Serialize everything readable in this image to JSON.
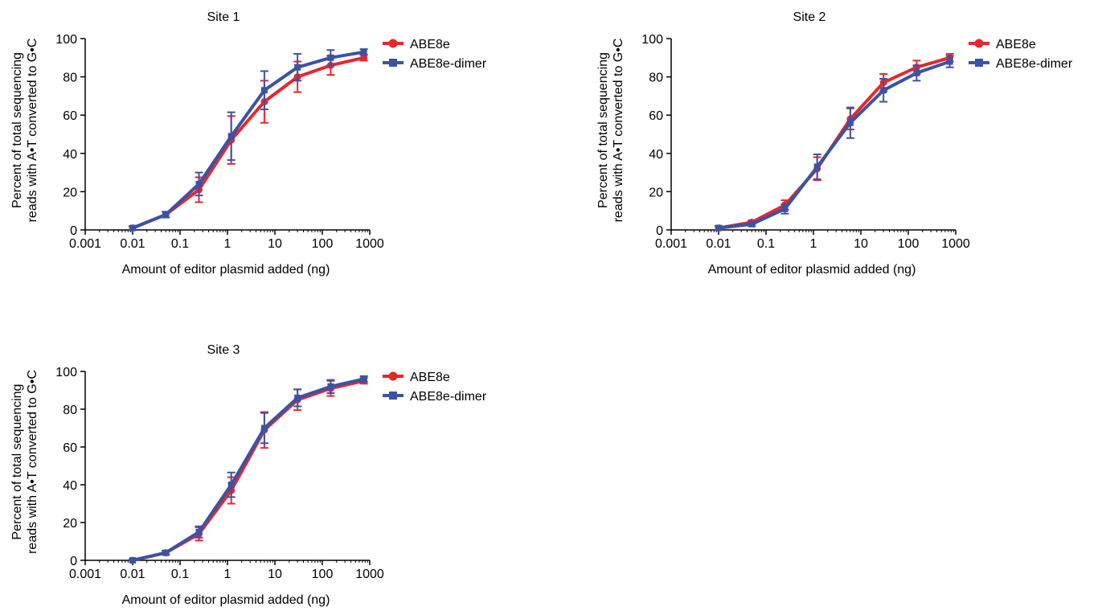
{
  "figure": {
    "colors": {
      "ABE8e": "#e8262b",
      "ABE8e-dimer": "#3a53a4",
      "axis": "#000000"
    }
  },
  "chart_data": [
    {
      "type": "line",
      "title": "Site 1",
      "xlabel": "Amount of editor plasmid added (ng)",
      "ylabel": [
        "Percent of total sequencing",
        "reads with A•T converted to G•C"
      ],
      "x_scale": "log",
      "xlim": [
        0.001,
        1000
      ],
      "ylim": [
        0,
        100
      ],
      "x_ticks": [
        "0.001",
        "0.01",
        "0.1",
        "1",
        "10",
        "100",
        "1000"
      ],
      "y_ticks": [
        "0",
        "20",
        "40",
        "60",
        "80",
        "100"
      ],
      "legend_position": "top-right",
      "x": [
        0.01,
        0.05,
        0.25,
        1.2,
        6,
        30,
        150,
        750
      ],
      "series": [
        {
          "name": "ABE8e",
          "color": "#e8262b",
          "marker": "circle",
          "values": [
            1,
            8,
            21,
            47,
            67,
            80,
            86,
            90
          ],
          "error": [
            1,
            1.5,
            6.5,
            12.5,
            11,
            8,
            5,
            1.5
          ]
        },
        {
          "name": "ABE8e-dimer",
          "color": "#3a53a4",
          "marker": "square",
          "values": [
            1,
            8,
            24,
            49,
            73,
            85,
            90,
            93
          ],
          "error": [
            1,
            1.5,
            6,
            12.5,
            10,
            7,
            4,
            1.5
          ]
        }
      ]
    },
    {
      "type": "line",
      "title": "Site 2",
      "xlabel": "Amount of editor plasmid added (ng)",
      "ylabel": [
        "Percent of total sequencing",
        "reads with A•T converted to G•C"
      ],
      "x_scale": "log",
      "xlim": [
        0.001,
        1000
      ],
      "ylim": [
        0,
        100
      ],
      "x_ticks": [
        "0.001",
        "0.01",
        "0.1",
        "1",
        "10",
        "100",
        "1000"
      ],
      "y_ticks": [
        "0",
        "20",
        "40",
        "60",
        "80",
        "100"
      ],
      "legend_position": "top-right",
      "x": [
        0.01,
        0.05,
        0.25,
        1.2,
        6,
        30,
        150,
        750
      ],
      "series": [
        {
          "name": "ABE8e",
          "color": "#e8262b",
          "marker": "circle",
          "values": [
            1,
            4,
            13,
            32,
            58,
            77,
            85,
            90
          ],
          "error": [
            1,
            1,
            2.5,
            6,
            5.5,
            4.5,
            3.5,
            2
          ]
        },
        {
          "name": "ABE8e-dimer",
          "color": "#3a53a4",
          "marker": "square",
          "values": [
            1,
            3,
            11,
            33,
            56,
            73,
            82,
            88
          ],
          "error": [
            1,
            1,
            2.5,
            6.5,
            8,
            6,
            4,
            3
          ]
        }
      ]
    },
    {
      "type": "line",
      "title": "Site 3",
      "xlabel": "Amount of editor plasmid added (ng)",
      "ylabel": [
        "Percent of total sequencing",
        "reads with A•T converted to G•C"
      ],
      "x_scale": "log",
      "xlim": [
        0.001,
        1000
      ],
      "ylim": [
        0,
        100
      ],
      "x_ticks": [
        "0.001",
        "0.01",
        "0.1",
        "1",
        "10",
        "100",
        "1000"
      ],
      "y_ticks": [
        "0",
        "20",
        "40",
        "60",
        "80",
        "100"
      ],
      "legend_position": "top-right",
      "x": [
        0.01,
        0.05,
        0.25,
        1.2,
        6,
        30,
        150,
        750
      ],
      "series": [
        {
          "name": "ABE8e",
          "color": "#e8262b",
          "marker": "circle",
          "values": [
            0,
            4,
            14,
            37,
            69,
            85,
            91,
            95
          ],
          "error": [
            0.5,
            1,
            3.5,
            7,
            9.5,
            5.5,
            4,
            1.5
          ]
        },
        {
          "name": "ABE8e-dimer",
          "color": "#3a53a4",
          "marker": "square",
          "values": [
            0,
            4,
            15,
            40,
            70,
            86,
            92,
            96
          ],
          "error": [
            0.5,
            1,
            3,
            6.5,
            8,
            4.5,
            3.5,
            1.5
          ]
        }
      ]
    }
  ]
}
